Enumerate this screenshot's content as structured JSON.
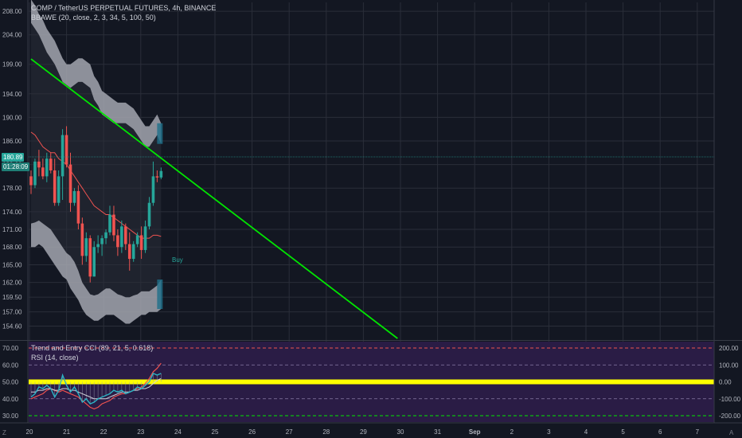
{
  "header": {
    "symbol_title": "COMP / TetherUS PERPETUAL FUTURES, 4h, BINANCE",
    "indicator_label": "BBAWE (20, close, 2, 3, 34, 5, 100, 50)"
  },
  "price_tags": {
    "last_price": "180.89",
    "countdown": "01:28:09"
  },
  "signals": {
    "buy_label": "Buy"
  },
  "lower_pane": {
    "cci_label": "Trend and Entry CCI (89, 21, 5, 0.618)",
    "rsi_label": "RSI (14, close)",
    "left_axis": [
      "70.00",
      "60.00",
      "50.00",
      "40.00",
      "30.00"
    ],
    "right_axis": [
      "200.00",
      "100.00",
      "0.00",
      "-100.00",
      "-200.00"
    ]
  },
  "price_axis": {
    "ticks": [
      "208.00",
      "204.00",
      "199.00",
      "194.00",
      "190.00",
      "186.00",
      "182.00",
      "178.00",
      "174.00",
      "171.00",
      "168.00",
      "165.00",
      "162.00",
      "159.50",
      "157.00",
      "154.60"
    ]
  },
  "time_axis": {
    "ticks": [
      "20",
      "21",
      "22",
      "23",
      "24",
      "25",
      "26",
      "27",
      "28",
      "29",
      "30",
      "31",
      "Sep",
      "2",
      "3",
      "4",
      "5",
      "6",
      "7"
    ]
  },
  "corner_icons": {
    "left": "Z",
    "right": "A"
  },
  "colors": {
    "background": "#131722",
    "bull": "#26a69a",
    "bear": "#ef5350",
    "trendline": "#00e600",
    "band_fill": "#a3a6af",
    "bb_basis": "#ef5350",
    "rsi_zero_line": "#ffff00",
    "lower_pane_bg": "#2a1c45"
  },
  "chart_data": {
    "type": "candlestick",
    "x_ticks": [
      "20",
      "21",
      "22",
      "23",
      "24",
      "25",
      "26",
      "27",
      "28",
      "29",
      "30",
      "31",
      "Sep",
      "2",
      "3",
      "4",
      "5",
      "6",
      "7"
    ],
    "ylim": [
      152.5,
      209.5
    ],
    "candles": [
      {
        "o": 180.0,
        "h": 181.0,
        "l": 177.0,
        "c": 178.5
      },
      {
        "o": 178.5,
        "h": 183.0,
        "l": 178.0,
        "c": 182.5
      },
      {
        "o": 182.5,
        "h": 184.5,
        "l": 180.0,
        "c": 181.5
      },
      {
        "o": 181.5,
        "h": 183.0,
        "l": 179.5,
        "c": 180.0
      },
      {
        "o": 180.0,
        "h": 184.0,
        "l": 179.0,
        "c": 183.0
      },
      {
        "o": 183.0,
        "h": 184.0,
        "l": 180.5,
        "c": 181.0
      },
      {
        "o": 181.0,
        "h": 183.0,
        "l": 175.0,
        "c": 175.5
      },
      {
        "o": 175.5,
        "h": 181.0,
        "l": 175.0,
        "c": 180.0
      },
      {
        "o": 180.0,
        "h": 188.0,
        "l": 176.0,
        "c": 187.0
      },
      {
        "o": 187.0,
        "h": 188.5,
        "l": 181.5,
        "c": 182.0
      },
      {
        "o": 182.0,
        "h": 184.0,
        "l": 174.0,
        "c": 175.5
      },
      {
        "o": 175.5,
        "h": 178.0,
        "l": 175.0,
        "c": 177.5
      },
      {
        "o": 177.5,
        "h": 178.5,
        "l": 171.0,
        "c": 172.0
      },
      {
        "o": 172.0,
        "h": 173.0,
        "l": 165.0,
        "c": 166.5
      },
      {
        "o": 166.5,
        "h": 170.5,
        "l": 165.5,
        "c": 169.5
      },
      {
        "o": 169.5,
        "h": 170.0,
        "l": 162.0,
        "c": 163.0
      },
      {
        "o": 163.0,
        "h": 169.0,
        "l": 163.0,
        "c": 168.0
      },
      {
        "o": 168.0,
        "h": 170.0,
        "l": 167.0,
        "c": 168.5
      },
      {
        "o": 168.5,
        "h": 170.0,
        "l": 166.5,
        "c": 169.5
      },
      {
        "o": 169.5,
        "h": 171.0,
        "l": 168.5,
        "c": 170.5
      },
      {
        "o": 170.5,
        "h": 175.0,
        "l": 170.0,
        "c": 173.5
      },
      {
        "o": 173.5,
        "h": 175.0,
        "l": 169.0,
        "c": 170.0
      },
      {
        "o": 170.0,
        "h": 171.0,
        "l": 166.5,
        "c": 168.0
      },
      {
        "o": 168.0,
        "h": 172.5,
        "l": 167.0,
        "c": 171.5
      },
      {
        "o": 171.5,
        "h": 172.0,
        "l": 167.5,
        "c": 168.5
      },
      {
        "o": 168.5,
        "h": 170.5,
        "l": 164.0,
        "c": 166.0
      },
      {
        "o": 166.0,
        "h": 169.0,
        "l": 165.5,
        "c": 168.5
      },
      {
        "o": 168.5,
        "h": 170.5,
        "l": 168.0,
        "c": 170.0
      },
      {
        "o": 170.0,
        "h": 171.5,
        "l": 166.0,
        "c": 167.5
      },
      {
        "o": 167.5,
        "h": 172.5,
        "l": 167.0,
        "c": 171.5
      },
      {
        "o": 171.5,
        "h": 176.5,
        "l": 171.0,
        "c": 175.5
      },
      {
        "o": 175.5,
        "h": 182.5,
        "l": 175.0,
        "c": 180.0
      },
      {
        "o": 180.0,
        "h": 181.0,
        "l": 179.0,
        "c": 179.8
      },
      {
        "o": 179.8,
        "h": 181.5,
        "l": 179.5,
        "c": 180.9
      }
    ],
    "bb_upper": [
      206.0,
      205.0,
      204.0,
      202.5,
      201.0,
      200.0,
      199.0,
      197.5,
      196.0,
      195.5,
      195.0,
      195.5,
      196.0,
      196.0,
      195.5,
      195.0,
      193.0,
      192.0,
      190.5,
      190.0,
      189.5,
      189.0,
      189.0,
      189.0,
      189.0,
      188.5,
      188.0,
      187.0,
      186.0,
      185.0,
      185.0,
      186.0,
      187.0,
      185.5
    ],
    "bb_outer_upper": [
      210.0,
      209.0,
      207.5,
      206.5,
      205.0,
      204.0,
      203.0,
      201.5,
      200.0,
      199.0,
      199.0,
      199.5,
      200.0,
      200.0,
      199.5,
      199.0,
      197.0,
      196.0,
      194.5,
      194.0,
      193.5,
      193.0,
      192.5,
      192.5,
      192.5,
      192.0,
      191.5,
      190.5,
      189.5,
      188.5,
      188.5,
      189.5,
      190.5,
      189.0
    ],
    "bb_lower": [
      172.0,
      172.2,
      172.5,
      172.0,
      171.5,
      171.0,
      170.0,
      169.0,
      168.0,
      167.0,
      166.5,
      165.5,
      164.0,
      162.0,
      161.0,
      160.0,
      159.8,
      160.0,
      160.5,
      161.0,
      161.0,
      160.5,
      160.0,
      159.8,
      159.5,
      159.5,
      159.8,
      160.0,
      160.5,
      160.5,
      160.5,
      161.0,
      161.5,
      162.5
    ],
    "bb_outer_lower": [
      168.0,
      168.0,
      168.5,
      168.0,
      167.0,
      166.0,
      165.0,
      164.0,
      163.0,
      162.5,
      161.0,
      160.0,
      159.0,
      157.5,
      156.5,
      156.0,
      155.5,
      155.5,
      156.0,
      156.5,
      156.5,
      156.5,
      156.0,
      155.5,
      155.0,
      155.0,
      155.5,
      156.0,
      156.5,
      156.5,
      157.0,
      157.0,
      157.0,
      157.5
    ],
    "bb_basis": [
      187.5,
      187.0,
      186.0,
      185.0,
      184.5,
      184.0,
      184.0,
      183.0,
      182.5,
      182.0,
      181.0,
      180.0,
      179.0,
      178.0,
      177.0,
      176.0,
      175.0,
      174.5,
      174.0,
      173.5,
      173.5,
      173.0,
      172.5,
      172.0,
      171.5,
      171.0,
      170.5,
      170.0,
      169.5,
      169.5,
      169.5,
      170.0,
      170.0,
      169.8
    ],
    "trendline": {
      "x0": 0,
      "y0": 199.9,
      "x1": 93,
      "y1": 152.5
    },
    "rsi": [
      41,
      43,
      47,
      46,
      48,
      46,
      41,
      45,
      54,
      48,
      44,
      47,
      43,
      38,
      40,
      37,
      38,
      40,
      41,
      42,
      43,
      45,
      44,
      45,
      43,
      44,
      45,
      47,
      46,
      48,
      50,
      55,
      54,
      55
    ],
    "rsi_ma": [
      44,
      44,
      45,
      45,
      46,
      46,
      45,
      45,
      46,
      46,
      45,
      45,
      44,
      43,
      42,
      41,
      40,
      40,
      40,
      40,
      41,
      42,
      43,
      44,
      44,
      44,
      45,
      45,
      46,
      46,
      47,
      49,
      51,
      52
    ],
    "rsi_aux": [
      40,
      41,
      42,
      43,
      45,
      46,
      45,
      44,
      45,
      44,
      43,
      42,
      41,
      39,
      37,
      35,
      34,
      35,
      37,
      38,
      39,
      41,
      42,
      43,
      43,
      44,
      45,
      46,
      47,
      49,
      52,
      56,
      58,
      61
    ],
    "rsi_levels": {
      "top": 70,
      "upper_mid": 60,
      "mid": 50,
      "lower_mid": 40,
      "bottom": 30
    }
  }
}
